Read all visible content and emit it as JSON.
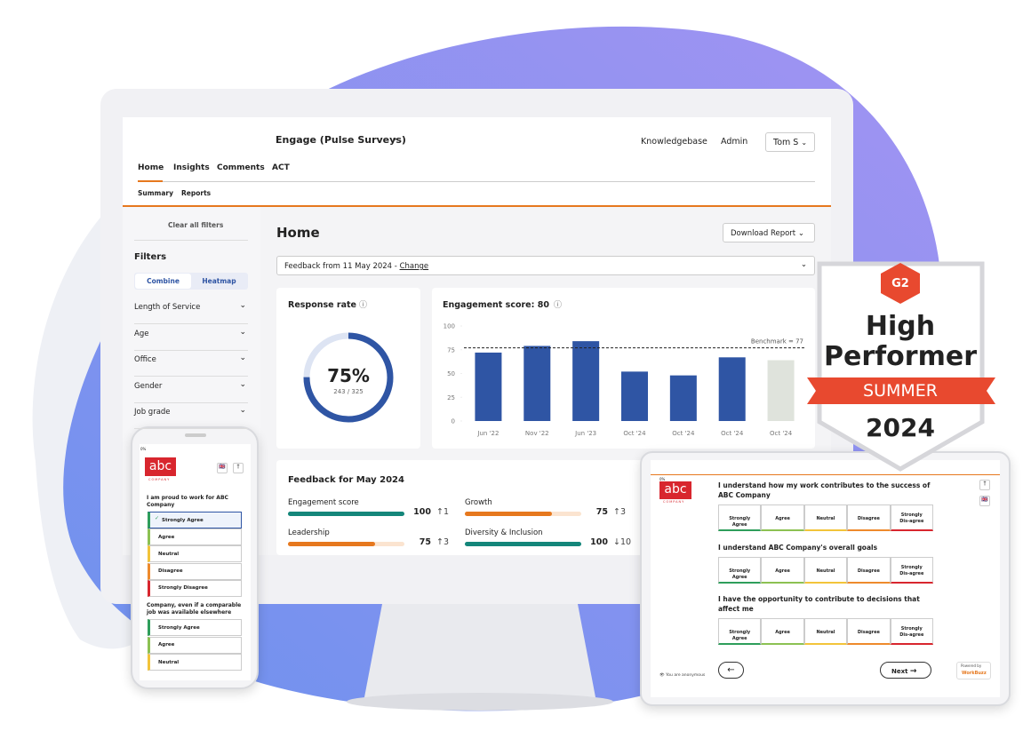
{
  "badge": {
    "brand": "G2",
    "line1": "High",
    "line2": "Performer",
    "season": "SUMMER",
    "year": "2024"
  },
  "header": {
    "product": "Engage (Pulse Surveys)",
    "links": [
      "Knowledgebase",
      "Admin"
    ],
    "user": "Tom S"
  },
  "tabs": [
    "Home",
    "Insights",
    "Comments",
    "ACT"
  ],
  "subtabs": [
    "Summary",
    "Reports"
  ],
  "filters": {
    "clear": "Clear all filters",
    "title": "Filters",
    "modes": [
      "Combine",
      "Heatmap"
    ],
    "items": [
      "Length of Service",
      "Age",
      "Office",
      "Gender",
      "Job grade"
    ]
  },
  "page": {
    "title": "Home",
    "download": "Download Report",
    "feedback_from": "Feedback from 11 May 2024 - ",
    "change": "Change"
  },
  "response_rate": {
    "title": "Response rate",
    "value": 75,
    "value_label": "75%",
    "lim": [
      0,
      100
    ],
    "detail": "243 / 325"
  },
  "chart_data": {
    "type": "bar",
    "title": "Engagement score: 80",
    "categories": [
      "Jun '22",
      "Nov '22",
      "Jun '23",
      "Oct '24",
      "Oct '24",
      "Oct '24",
      "Oct '24"
    ],
    "values": [
      72,
      79,
      84,
      52,
      48,
      67,
      64
    ],
    "colors": [
      "#2f55a4",
      "#2f55a4",
      "#2f55a4",
      "#2f55a4",
      "#2f55a4",
      "#2f55a4",
      "#dfe3dc"
    ],
    "ylim": [
      0,
      100
    ],
    "yticks": [
      0,
      25,
      50,
      75,
      100
    ],
    "benchmark": {
      "value": 77,
      "label": "Benchmark = 77"
    }
  },
  "feedback": {
    "title": "Feedback for May 2024",
    "xlim": [
      0,
      100
    ],
    "items": [
      {
        "name": "Engagement score",
        "value": 100,
        "change": "↑1",
        "color": "#14867a",
        "track": "#d5ece7"
      },
      {
        "name": "Growth",
        "value": 75,
        "change": "↑3",
        "color": "#e6781e",
        "track": "#fbe4d0"
      },
      {
        "name": "Leadership",
        "value": 75,
        "change": "↑3",
        "color": "#e6781e",
        "track": "#fbe4d0"
      },
      {
        "name": "Diversity & Inclusion",
        "value": 100,
        "change": "↓10",
        "color": "#14867a",
        "track": "#d5ece7"
      }
    ]
  },
  "phone": {
    "progress": "0%",
    "logo": "abc",
    "company": "COMPANY",
    "question1": "I am proud to work for ABC Company",
    "options1": [
      "Strongly Agree",
      "Agree",
      "Neutral",
      "Disagree",
      "Strongly Disagree"
    ],
    "question2": "Company, even if a comparable job was available elsewhere",
    "options2": [
      "Strongly Agree",
      "Agree",
      "Neutral"
    ]
  },
  "tablet": {
    "progress": "0%",
    "logo": "abc",
    "company": "COMPANY",
    "questions": [
      "I understand how my work contributes to the success of ABC Company",
      "I understand ABC Company's overall goals",
      "I have the opportunity to contribute to decisions that affect me"
    ],
    "options": [
      "Strongly Agree",
      "Agree",
      "Neutral",
      "Disagree",
      "Strongly Dis-agree"
    ],
    "anonymous": "You are anonymous",
    "next": "Next",
    "powered": "Powered by",
    "vendor": "WorkBuzz"
  }
}
